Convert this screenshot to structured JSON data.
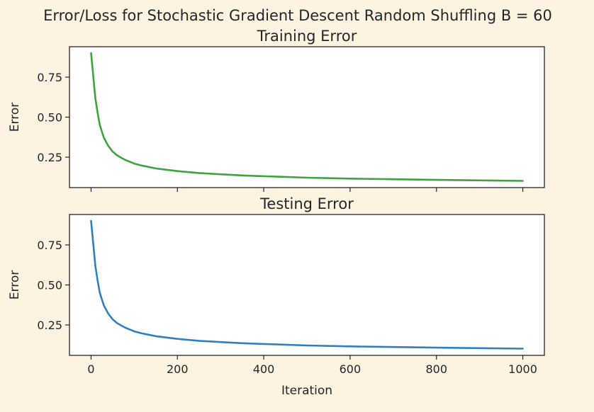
{
  "figure": {
    "suptitle": "Error/Loss for Stochastic Gradient Descent Random Shuffling B = 60",
    "background": "#fdf3e0"
  },
  "chart_data": [
    {
      "type": "line",
      "title": "Training Error",
      "xlabel": "",
      "ylabel": "Error",
      "xlim": [
        -50,
        1050
      ],
      "ylim": [
        0.06,
        0.94
      ],
      "xticks": [
        0,
        200,
        400,
        600,
        800,
        1000
      ],
      "xtick_labels_visible": false,
      "yticks": [
        0.25,
        0.5,
        0.75
      ],
      "ytick_labels": [
        "0.25",
        "0.50",
        "0.75"
      ],
      "grid": false,
      "color": "#3fa33f",
      "x": [
        0,
        5,
        10,
        15,
        20,
        25,
        30,
        40,
        50,
        60,
        70,
        80,
        100,
        120,
        150,
        200,
        250,
        300,
        350,
        400,
        500,
        600,
        700,
        800,
        900,
        1000
      ],
      "y": [
        0.9,
        0.76,
        0.62,
        0.53,
        0.455,
        0.41,
        0.37,
        0.32,
        0.285,
        0.262,
        0.246,
        0.232,
        0.21,
        0.196,
        0.18,
        0.163,
        0.151,
        0.143,
        0.136,
        0.131,
        0.122,
        0.116,
        0.112,
        0.108,
        0.105,
        0.102
      ]
    },
    {
      "type": "line",
      "title": "Testing Error",
      "xlabel": "Iteration",
      "ylabel": "Error",
      "xlim": [
        -50,
        1050
      ],
      "ylim": [
        0.06,
        0.94
      ],
      "xticks": [
        0,
        200,
        400,
        600,
        800,
        1000
      ],
      "xtick_labels": [
        "0",
        "200",
        "400",
        "600",
        "800",
        "1000"
      ],
      "yticks": [
        0.25,
        0.5,
        0.75
      ],
      "ytick_labels": [
        "0.25",
        "0.50",
        "0.75"
      ],
      "grid": false,
      "color": "#2f7fc1",
      "x": [
        0,
        5,
        10,
        15,
        20,
        25,
        30,
        40,
        50,
        60,
        70,
        80,
        100,
        120,
        150,
        200,
        250,
        300,
        350,
        400,
        500,
        600,
        700,
        800,
        900,
        1000
      ],
      "y": [
        0.9,
        0.76,
        0.62,
        0.53,
        0.455,
        0.41,
        0.37,
        0.32,
        0.285,
        0.262,
        0.246,
        0.232,
        0.21,
        0.196,
        0.18,
        0.163,
        0.151,
        0.143,
        0.136,
        0.131,
        0.122,
        0.116,
        0.112,
        0.108,
        0.105,
        0.102
      ]
    }
  ]
}
